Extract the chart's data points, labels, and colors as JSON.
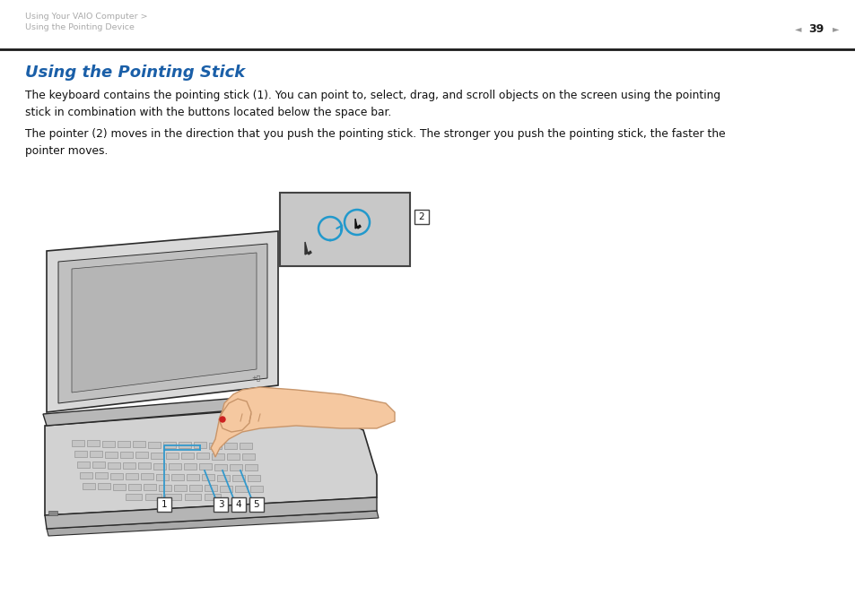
{
  "bg_color": "#ffffff",
  "header_breadcrumb_line1": "Using Your VAIO Computer >",
  "header_breadcrumb_line2": "Using the Pointing Device",
  "header_page_num": "39",
  "header_text_color": "#aaaaaa",
  "header_arrow_color": "#999999",
  "divider_color": "#1a1a1a",
  "title": "Using the Pointing Stick",
  "title_color": "#1a5fa8",
  "title_fontsize": 13,
  "para1": "The keyboard contains the pointing stick (1). You can point to, select, drag, and scroll objects on the screen using the pointing\nstick in combination with the buttons located below the space bar.",
  "para2": "The pointer (2) moves in the direction that you push the pointing stick. The stronger you push the pointing stick, the faster the\npointer moves.",
  "body_text_color": "#111111",
  "body_fontsize": 8.8,
  "label_color": "#111111",
  "blue_line_color": "#3399cc",
  "laptop_body_color": "#d5d5d5",
  "laptop_edge_color": "#333333",
  "screen_color": "#c0c0c0",
  "screen_inner_color": "#b0b0b0",
  "hand_fill": "#f5c8a0",
  "hand_edge": "#c8956a",
  "inset_bg": "#c8c8c8",
  "inset_border": "#444444"
}
